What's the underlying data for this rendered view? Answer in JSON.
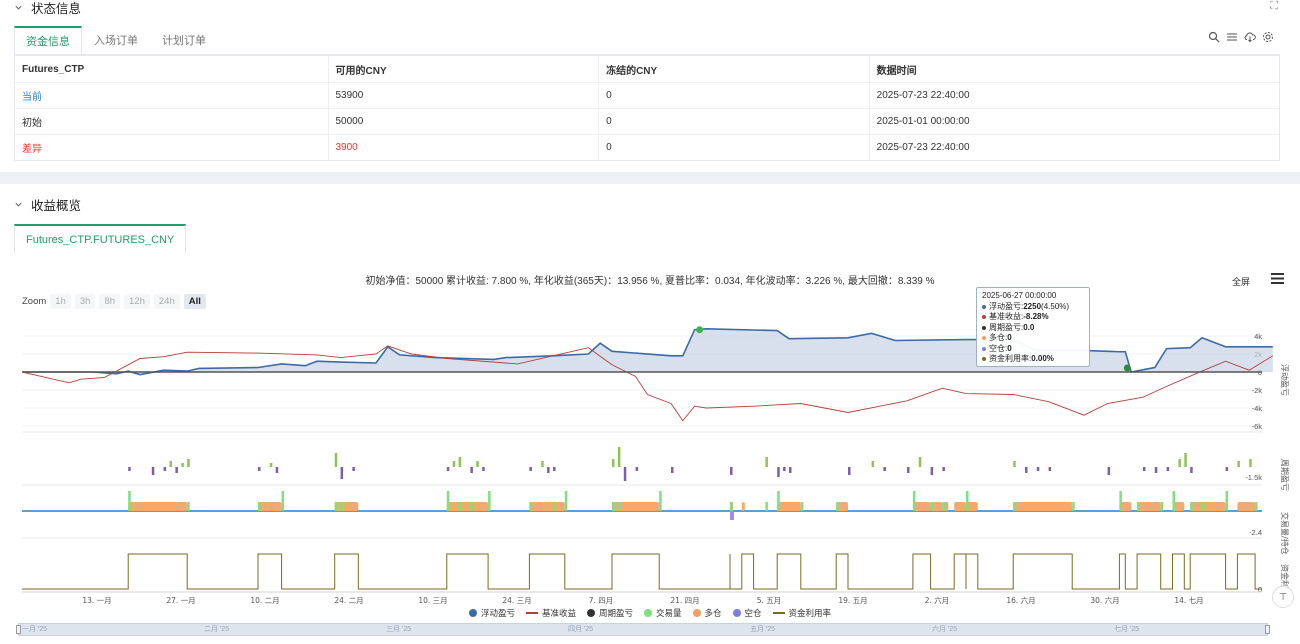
{
  "status": {
    "title": "状态信息",
    "tabs": [
      "资金信息",
      "入场订单",
      "计划订单"
    ],
    "table": {
      "headers": [
        "Futures_CTP",
        "可用的CNY",
        "冻结的CNY",
        "数据时间"
      ],
      "rows": [
        [
          "当前",
          "53900",
          "0",
          "2025-07-23 22:40:00"
        ],
        [
          "初始",
          "50000",
          "0",
          "2025-01-01 00:00:00"
        ],
        [
          "差异",
          "3900",
          "0",
          "2025-07-23 22:40:00"
        ]
      ]
    },
    "corner_icon": "⛶"
  },
  "returns": {
    "title": "收益概览",
    "tab": "Futures_CTP.FUTURES_CNY",
    "summary": "初始净值：50000 累计收益: 7.800 %, 年化收益(365天)：13.956 %, 夏普比率：0.034, 年化波动率：3.226 %, 最大回撤：8.339 %",
    "zoom_label": "Zoom",
    "zoom_buttons": [
      "1h",
      "3h",
      "8h",
      "12h",
      "24h",
      "All"
    ],
    "fullscreen": "全屏",
    "scroll_top": "⊤"
  },
  "tooltip": {
    "date": "2025-06-27 00:00:00",
    "rows": [
      {
        "label": "浮动盈亏: ",
        "value": "2250",
        "extra": " (4.50%)",
        "color": "#3d6aa8"
      },
      {
        "label": "基准收益: ",
        "value": "-8.28%",
        "extra": "",
        "color": "#b5403a"
      },
      {
        "label": "周期盈亏: ",
        "value": "0.0",
        "extra": "",
        "color": "#333333"
      },
      {
        "label": "多仓: ",
        "value": "0",
        "extra": "",
        "color": "#f0a060"
      },
      {
        "label": "空仓: ",
        "value": "0",
        "extra": "",
        "color": "#7b7fe0"
      },
      {
        "label": "资金利用率: ",
        "value": "0.00%",
        "extra": "",
        "color": "#7a6a20"
      }
    ]
  },
  "legend": [
    {
      "label": "浮动盈亏",
      "color": "#3d6aa8",
      "kind": "dot"
    },
    {
      "label": "基准收益",
      "color": "#b5403a",
      "kind": "line"
    },
    {
      "label": "周期盈亏",
      "color": "#333333",
      "kind": "dot"
    },
    {
      "label": "交易量",
      "color": "#7ee07e",
      "kind": "dot"
    },
    {
      "label": "多仓",
      "color": "#f0a060",
      "kind": "dot"
    },
    {
      "label": "空仓",
      "color": "#7b7fe0",
      "kind": "dot"
    },
    {
      "label": "资金利用率",
      "color": "#7a6a20",
      "kind": "line"
    }
  ],
  "navigator_labels": [
    "一月 '25",
    "二月 '25",
    "三月 '25",
    "四月 '25",
    "五月 '25",
    "六月 '25",
    "七月 '25"
  ],
  "chart_data": {
    "type": "line",
    "x_ticks": [
      "13. 一月",
      "27. 一月",
      "10. 二月",
      "24. 二月",
      "10. 三月",
      "24. 三月",
      "7. 四月",
      "21. 四月",
      "5. 五月",
      "19. 五月",
      "2. 六月",
      "16. 六月",
      "30. 六月",
      "14. 七月"
    ],
    "panels": [
      {
        "name": "浮动盈亏",
        "y_ticks": [
          "4k",
          "2k",
          "0",
          "-2k",
          "-4k",
          "-6k"
        ],
        "ylim": [
          -6500,
          5000
        ]
      },
      {
        "name": "周期盈亏",
        "y_ticks": [
          "-1.5k"
        ]
      },
      {
        "name": "交易量/持仓",
        "y_ticks": [
          "-2.4"
        ]
      },
      {
        "name": "资金利用率",
        "y_ticks": [
          "0"
        ]
      }
    ],
    "series": [
      {
        "name": "浮动盈亏",
        "points": [
          [
            0,
            0
          ],
          [
            0.06,
            0
          ],
          [
            0.08,
            -200
          ],
          [
            0.09,
            100
          ],
          [
            0.1,
            -300
          ],
          [
            0.12,
            200
          ],
          [
            0.14,
            100
          ],
          [
            0.15,
            400
          ],
          [
            0.2,
            500
          ],
          [
            0.22,
            900
          ],
          [
            0.24,
            700
          ],
          [
            0.25,
            1200
          ],
          [
            0.27,
            1100
          ],
          [
            0.3,
            1000
          ],
          [
            0.31,
            2800
          ],
          [
            0.32,
            1900
          ],
          [
            0.35,
            1600
          ],
          [
            0.4,
            1400
          ],
          [
            0.41,
            1600
          ],
          [
            0.45,
            1800
          ],
          [
            0.48,
            2000
          ],
          [
            0.49,
            3200
          ],
          [
            0.5,
            2300
          ],
          [
            0.55,
            1800
          ],
          [
            0.56,
            1800
          ],
          [
            0.57,
            4700
          ],
          [
            0.58,
            4800
          ],
          [
            0.64,
            4600
          ],
          [
            0.65,
            3700
          ],
          [
            0.7,
            3800
          ],
          [
            0.72,
            4300
          ],
          [
            0.74,
            3500
          ],
          [
            0.8,
            3600
          ],
          [
            0.84,
            3600
          ],
          [
            0.86,
            2400
          ],
          [
            0.9,
            2400
          ],
          [
            0.92,
            2300
          ],
          [
            0.93,
            2250
          ],
          [
            0.935,
            2250
          ],
          [
            0.94,
            0
          ],
          [
            0.96,
            500
          ],
          [
            0.97,
            2600
          ],
          [
            0.99,
            2700
          ],
          [
            1.0,
            3800
          ],
          [
            1.02,
            2800
          ],
          [
            1.06,
            2800
          ]
        ]
      },
      {
        "name": "基准收益",
        "points": [
          [
            0,
            0
          ],
          [
            0.02,
            -600
          ],
          [
            0.04,
            -1200
          ],
          [
            0.05,
            -800
          ],
          [
            0.07,
            -600
          ],
          [
            0.1,
            1500
          ],
          [
            0.12,
            1700
          ],
          [
            0.14,
            2200
          ],
          [
            0.2,
            2100
          ],
          [
            0.25,
            1900
          ],
          [
            0.27,
            1600
          ],
          [
            0.3,
            2000
          ],
          [
            0.31,
            2900
          ],
          [
            0.33,
            2000
          ],
          [
            0.36,
            1500
          ],
          [
            0.42,
            900
          ],
          [
            0.45,
            1800
          ],
          [
            0.48,
            2700
          ],
          [
            0.5,
            800
          ],
          [
            0.52,
            -500
          ],
          [
            0.53,
            -2500
          ],
          [
            0.55,
            -3500
          ],
          [
            0.56,
            -5400
          ],
          [
            0.57,
            -3800
          ],
          [
            0.58,
            -4000
          ],
          [
            0.62,
            -3800
          ],
          [
            0.66,
            -3500
          ],
          [
            0.7,
            -4500
          ],
          [
            0.75,
            -3200
          ],
          [
            0.78,
            -1800
          ],
          [
            0.8,
            -2400
          ],
          [
            0.84,
            -2500
          ],
          [
            0.87,
            -3300
          ],
          [
            0.9,
            -4800
          ],
          [
            0.92,
            -3500
          ],
          [
            0.95,
            -2800
          ],
          [
            0.97,
            -1600
          ],
          [
            1.0,
            100
          ],
          [
            1.02,
            1200
          ],
          [
            1.04,
            200
          ],
          [
            1.06,
            1800
          ]
        ]
      }
    ],
    "annotations": [
      "green marker on 浮动盈亏 peak",
      "green marker at 2025-06-27"
    ]
  }
}
